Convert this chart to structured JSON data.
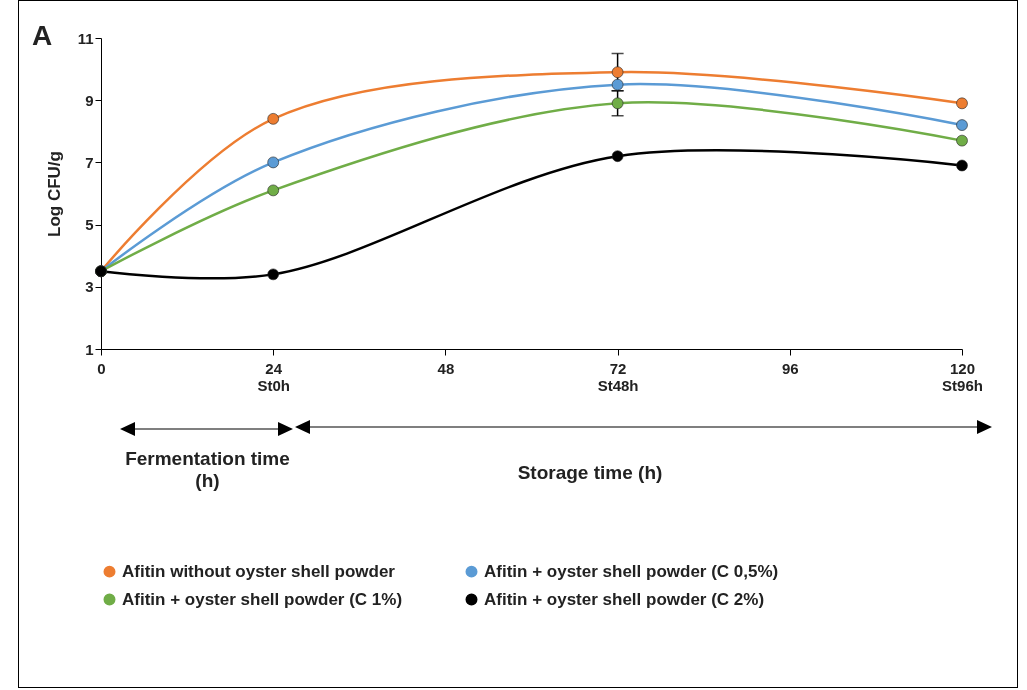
{
  "chart_data": {
    "type": "line",
    "ylabel": "Log CFU/g",
    "x": [
      0,
      24,
      72,
      120
    ],
    "xlim": [
      0,
      120
    ],
    "xticks": [
      0,
      {
        "value": 24,
        "label": "24\nSt0h"
      },
      48,
      {
        "value": 72,
        "label": "72\nSt48h"
      },
      96,
      {
        "value": 120,
        "label": "120\nSt96h"
      }
    ],
    "ylim": [
      1,
      11
    ],
    "yticks": [
      1,
      3,
      5,
      7,
      9,
      11
    ],
    "series": [
      {
        "name": "Afitin without oyster shell powder",
        "color": "#ed7d31",
        "values": [
          3.5,
          8.4,
          9.9,
          8.9
        ],
        "errors": [
          null,
          null,
          0.6,
          null
        ]
      },
      {
        "name": "Afitin + oyster shell powder (C 0,5%)",
        "color": "#5b9bd5",
        "values": [
          3.5,
          7.0,
          9.5,
          8.2
        ]
      },
      {
        "name": "Afitin + oyster shell powder (C 1%)",
        "color": "#70ad47",
        "values": [
          3.5,
          6.1,
          8.9,
          7.7
        ],
        "errors": [
          null,
          null,
          0.4,
          null
        ]
      },
      {
        "name": "Afitin + oyster shell powder (C 2%)",
        "color": "#000000",
        "values": [
          3.5,
          3.4,
          7.2,
          6.9
        ]
      }
    ],
    "annotations": [
      "A",
      "Fermentation time (h)",
      "Storage time (h)"
    ],
    "grid": false,
    "legend": "bottom",
    "marker": "circle",
    "line_style": "solid"
  }
}
